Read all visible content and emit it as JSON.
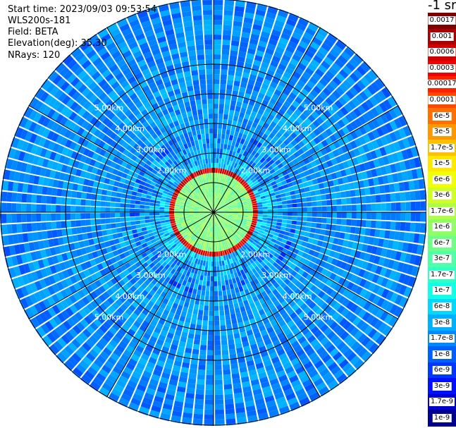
{
  "header": {
    "start_time": "Start time: 2023/09/03 09:53:54",
    "instrument": "WLS200s-181",
    "field": "Field: BETA",
    "elevation": "Elevation(deg): 35.30",
    "nrays": "NRays: 120"
  },
  "colorbar": {
    "title": "-1 sr",
    "labels": [
      "0.0017",
      "0.001",
      "0.0006",
      "0.0003",
      "0.00017",
      "0.0001",
      "6e-5",
      "3e-5",
      "1.7e-5",
      "1e-5",
      "6e-6",
      "3e-6",
      "1.7e-6",
      "1e-6",
      "6e-7",
      "3e-7",
      "1.7e-7",
      "1e-7",
      "6e-8",
      "3e-8",
      "1.7e-8",
      "1e-8",
      "6e-9",
      "3e-9",
      "1.7e-9",
      "1e-9"
    ],
    "colors": [
      "#800000",
      "#a80000",
      "#d00000",
      "#f00000",
      "#ff2000",
      "#ff4800",
      "#ff7000",
      "#ff9800",
      "#ffc000",
      "#ffe800",
      "#f0ff06",
      "#d0ff26",
      "#b0ff46",
      "#90ff66",
      "#70ff86",
      "#50ffa6",
      "#30ffc6",
      "#10ffe6",
      "#00d8ff",
      "#00b0ff",
      "#0088ff",
      "#0060ff",
      "#0038ff",
      "#0010ff",
      "#0000d0",
      "#000090"
    ]
  },
  "chart_data": {
    "type": "heatmap",
    "projection": "polar (PPI scan)",
    "field": "BETA",
    "colorscale": "jet (log)",
    "rays": 120,
    "range_rings_km": [
      1,
      2,
      3,
      4,
      5
    ],
    "range_ring_labels": [
      "2.00km",
      "3.00km",
      "4.00km",
      "5.00km"
    ],
    "color_range": [
      1e-09,
      0.0017
    ],
    "features": [
      {
        "description": "strong backscatter ring",
        "range_km": 0.9,
        "approx_value": 0.0006
      },
      {
        "description": "background noise",
        "approx_value": 3e-08
      }
    ]
  }
}
